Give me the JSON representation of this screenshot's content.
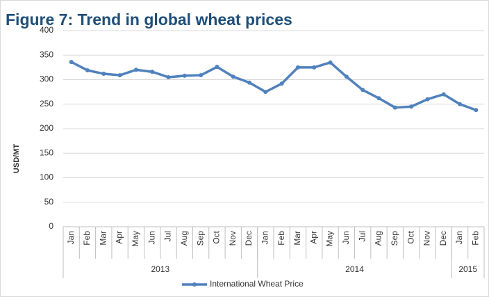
{
  "chart_data": {
    "type": "line",
    "title": "Figure 7: Trend in global wheat prices",
    "y_label": "USD/MT",
    "groups": [
      {
        "label": "2013",
        "categories": [
          "Jan",
          "Feb",
          "Mar",
          "Apr",
          "May",
          "Jun",
          "Jul",
          "Aug",
          "Sep",
          "Oct",
          "Nov",
          "Dec"
        ]
      },
      {
        "label": "2014",
        "categories": [
          "Jan",
          "Feb",
          "Mar",
          "Apr",
          "May",
          "Jun",
          "Jul",
          "Aug",
          "Sep",
          "Oct",
          "Nov",
          "Dec"
        ]
      },
      {
        "label": "2015",
        "categories": [
          "Jan",
          "Feb"
        ]
      }
    ],
    "series": [
      {
        "name": "International Wheat Price",
        "color": "#4f81bd",
        "values": [
          336,
          319,
          312,
          309,
          320,
          316,
          305,
          308,
          309,
          326,
          306,
          294,
          275,
          292,
          325,
          325,
          335,
          306,
          279,
          262,
          243,
          245,
          260,
          270,
          250,
          238
        ]
      }
    ],
    "ylim": [
      0,
      400
    ],
    "yticks": [
      0,
      50,
      100,
      150,
      200,
      250,
      300,
      350,
      400
    ],
    "grid": true,
    "legend": "bottom"
  }
}
